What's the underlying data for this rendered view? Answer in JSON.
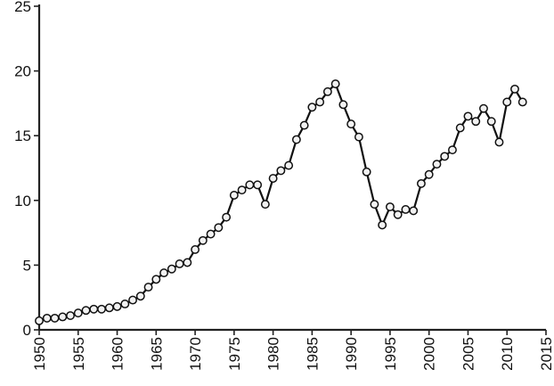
{
  "chart_data": {
    "type": "line",
    "title": "",
    "xlabel": "",
    "ylabel": "",
    "xlim": [
      1950,
      2015
    ],
    "ylim": [
      0,
      25
    ],
    "x_ticks": [
      "1950",
      "1955",
      "1960",
      "1965",
      "1970",
      "1975",
      "1980",
      "1985",
      "1990",
      "1995",
      "2000",
      "2005",
      "2010",
      "2015"
    ],
    "y_ticks": [
      "0",
      "5",
      "10",
      "15",
      "20",
      "25"
    ],
    "grid": false,
    "legend": "none",
    "series": [
      {
        "marker": "circle",
        "color": "#111111",
        "points": [
          {
            "x": 1950,
            "y": 0.7
          },
          {
            "x": 1951,
            "y": 0.9
          },
          {
            "x": 1952,
            "y": 0.9
          },
          {
            "x": 1953,
            "y": 1.0
          },
          {
            "x": 1954,
            "y": 1.1
          },
          {
            "x": 1955,
            "y": 1.3
          },
          {
            "x": 1956,
            "y": 1.5
          },
          {
            "x": 1957,
            "y": 1.6
          },
          {
            "x": 1958,
            "y": 1.6
          },
          {
            "x": 1959,
            "y": 1.7
          },
          {
            "x": 1960,
            "y": 1.8
          },
          {
            "x": 1961,
            "y": 2.0
          },
          {
            "x": 1962,
            "y": 2.3
          },
          {
            "x": 1963,
            "y": 2.6
          },
          {
            "x": 1964,
            "y": 3.3
          },
          {
            "x": 1965,
            "y": 3.9
          },
          {
            "x": 1966,
            "y": 4.4
          },
          {
            "x": 1967,
            "y": 4.7
          },
          {
            "x": 1968,
            "y": 5.1
          },
          {
            "x": 1969,
            "y": 5.2
          },
          {
            "x": 1970,
            "y": 6.2
          },
          {
            "x": 1971,
            "y": 6.9
          },
          {
            "x": 1972,
            "y": 7.4
          },
          {
            "x": 1973,
            "y": 7.9
          },
          {
            "x": 1974,
            "y": 8.7
          },
          {
            "x": 1975,
            "y": 10.4
          },
          {
            "x": 1976,
            "y": 10.8
          },
          {
            "x": 1977,
            "y": 11.2
          },
          {
            "x": 1978,
            "y": 11.2
          },
          {
            "x": 1979,
            "y": 9.7
          },
          {
            "x": 1980,
            "y": 11.7
          },
          {
            "x": 1981,
            "y": 12.3
          },
          {
            "x": 1982,
            "y": 12.7
          },
          {
            "x": 1983,
            "y": 14.7
          },
          {
            "x": 1984,
            "y": 15.8
          },
          {
            "x": 1985,
            "y": 17.2
          },
          {
            "x": 1986,
            "y": 17.6
          },
          {
            "x": 1987,
            "y": 18.4
          },
          {
            "x": 1988,
            "y": 19.0
          },
          {
            "x": 1989,
            "y": 17.4
          },
          {
            "x": 1990,
            "y": 15.9
          },
          {
            "x": 1991,
            "y": 14.9
          },
          {
            "x": 1992,
            "y": 12.2
          },
          {
            "x": 1993,
            "y": 9.7
          },
          {
            "x": 1994,
            "y": 8.1
          },
          {
            "x": 1995,
            "y": 9.5
          },
          {
            "x": 1996,
            "y": 8.9
          },
          {
            "x": 1997,
            "y": 9.3
          },
          {
            "x": 1998,
            "y": 9.2
          },
          {
            "x": 1999,
            "y": 11.3
          },
          {
            "x": 2000,
            "y": 12.0
          },
          {
            "x": 2001,
            "y": 12.8
          },
          {
            "x": 2002,
            "y": 13.4
          },
          {
            "x": 2003,
            "y": 13.9
          },
          {
            "x": 2004,
            "y": 15.6
          },
          {
            "x": 2005,
            "y": 16.5
          },
          {
            "x": 2006,
            "y": 16.1
          },
          {
            "x": 2007,
            "y": 17.1
          },
          {
            "x": 2008,
            "y": 16.1
          },
          {
            "x": 2009,
            "y": 14.5
          },
          {
            "x": 2010,
            "y": 17.6
          },
          {
            "x": 2011,
            "y": 18.6
          },
          {
            "x": 2012,
            "y": 17.6
          }
        ]
      }
    ]
  }
}
